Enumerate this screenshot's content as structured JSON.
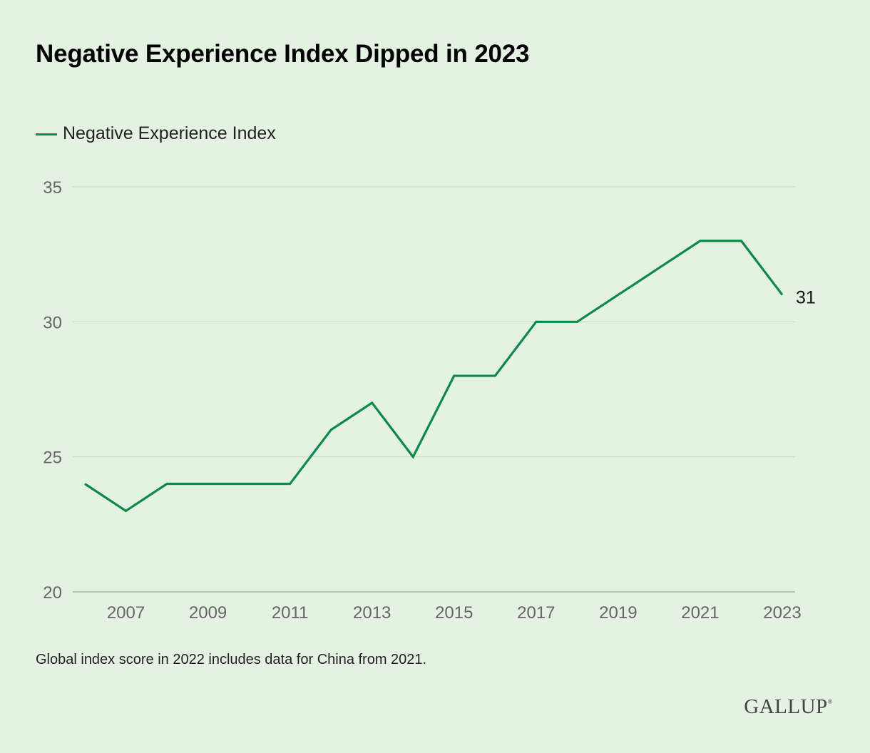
{
  "title": "Negative Experience Index Dipped in 2023",
  "footnote": "Global index score in 2022 includes data for China from 2021.",
  "brand": "GALLUP",
  "colors": {
    "background": "#e4f2e1",
    "line": "#0b8a4a",
    "grid": "#c9d6c7",
    "tick": "#666666"
  },
  "chart_data": {
    "type": "line",
    "x": [
      2006,
      2007,
      2008,
      2009,
      2010,
      2011,
      2012,
      2013,
      2014,
      2015,
      2016,
      2017,
      2018,
      2019,
      2020,
      2021,
      2022,
      2023
    ],
    "series": [
      {
        "name": "Negative Experience Index",
        "values": [
          24,
          23,
          24,
          24,
          24,
          24,
          26,
          27,
          25,
          28,
          28,
          30,
          30,
          31,
          32,
          33,
          33,
          31
        ]
      }
    ],
    "end_label": "31",
    "x_ticks": [
      "2007",
      "2009",
      "2011",
      "2013",
      "2015",
      "2017",
      "2019",
      "2021",
      "2023"
    ],
    "y_ticks": [
      "20",
      "25",
      "30",
      "35"
    ],
    "ylim": [
      20,
      35
    ],
    "xlim": [
      2006,
      2023
    ],
    "grid": "horizontal",
    "legend": "top-left"
  }
}
